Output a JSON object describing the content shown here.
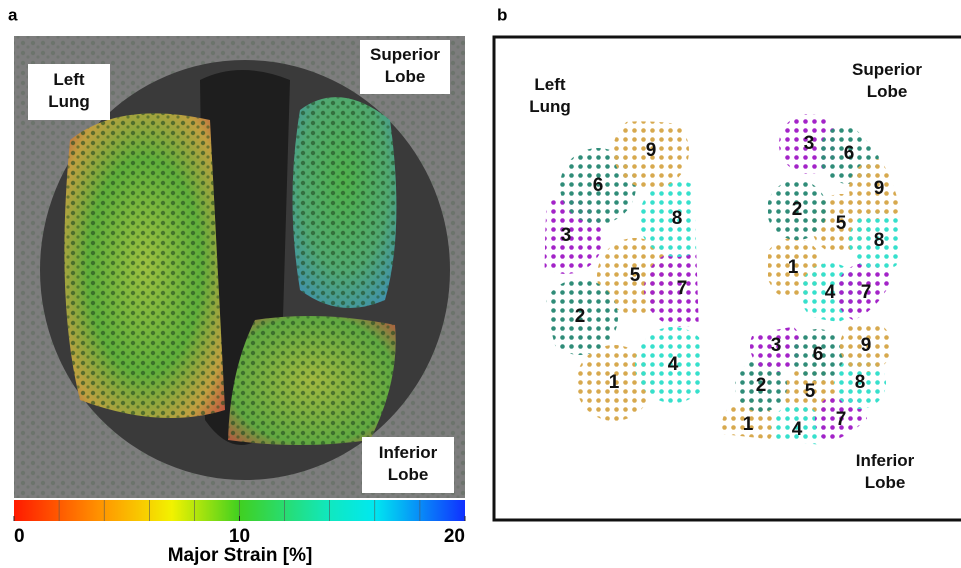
{
  "panel_a": {
    "label": "a",
    "annotations": [
      "Left Lung",
      "Superior Lobe",
      "Inferior Lobe"
    ],
    "colorbar": {
      "label": "Major Strain [%]",
      "lim": [
        0,
        20
      ],
      "ticks": [
        0,
        10,
        20
      ]
    }
  },
  "panel_b": {
    "label": "b",
    "lobes": [
      {
        "name": "Left Lung",
        "regions": [
          1,
          2,
          3,
          4,
          5,
          6,
          7,
          8,
          9
        ]
      },
      {
        "name": "Superior Lobe",
        "regions": [
          1,
          2,
          3,
          4,
          5,
          6,
          7,
          8,
          9
        ]
      },
      {
        "name": "Inferior Lobe",
        "regions": [
          1,
          2,
          3,
          4,
          5,
          6,
          7,
          8,
          9
        ]
      }
    ]
  }
}
